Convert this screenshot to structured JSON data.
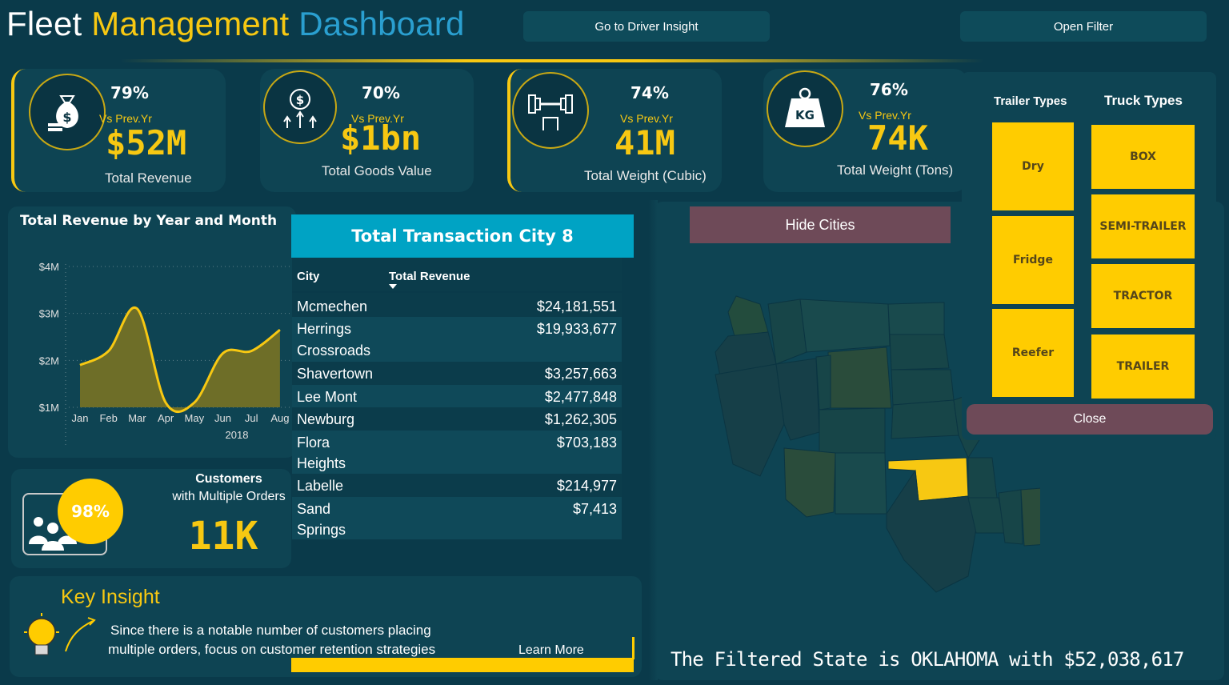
{
  "header": {
    "title_part1": "Fleet",
    "title_part2": "Management",
    "title_part3": "Dashboard",
    "driver_insight_button": "Go to Driver Insight",
    "open_filter_button": "Open Filter"
  },
  "kpis": [
    {
      "pct": "79%",
      "vs": "Vs Prev.Yr",
      "value": "$52M",
      "label": "Total Revenue",
      "icon": "money-bag-icon"
    },
    {
      "pct": "70%",
      "vs": "Vs Prev.Yr",
      "value": "$1bn",
      "label": "Total Goods Value",
      "icon": "dollar-growth-icon"
    },
    {
      "pct": "74%",
      "vs": "Vs Prev.Yr",
      "value": "41M",
      "label": "Total Weight (Cubic)",
      "icon": "dumbbell-icon"
    },
    {
      "pct": "76%",
      "vs": "Vs Prev.Yr",
      "value": "74K",
      "label": "Total Weight (Tons)",
      "icon": "kg-weight-icon"
    }
  ],
  "revenue_chart": {
    "title": "Total Revenue by Year and Month",
    "year_label": "2018"
  },
  "chart_data": {
    "type": "area",
    "title": "Total Revenue by Year and Month",
    "x": [
      "Jan",
      "Feb",
      "Mar",
      "Apr",
      "May",
      "Jun",
      "Jul",
      "Aug"
    ],
    "values": [
      1.9,
      2.2,
      3.1,
      1.1,
      1.1,
      2.15,
      2.2,
      2.65
    ],
    "yticks": [
      "$1M",
      "$2M",
      "$3M",
      "$4M"
    ],
    "ylim": [
      1,
      4
    ],
    "xgroup": "2018",
    "color": "#f7c812",
    "fill": "#6e6e28"
  },
  "city_table": {
    "title": "Total Transaction City 8",
    "col_city": "City",
    "col_revenue": "Total Revenue",
    "rows": [
      {
        "city1": "Mcmechen",
        "city2": "",
        "revenue": "$24,181,551"
      },
      {
        "city1": "Herrings",
        "city2": "Crossroads",
        "revenue": "$19,933,677"
      },
      {
        "city1": "Shavertown",
        "city2": "",
        "revenue": "$3,257,663"
      },
      {
        "city1": "Lee Mont",
        "city2": "",
        "revenue": "$2,477,848"
      },
      {
        "city1": "Newburg",
        "city2": "",
        "revenue": "$1,262,305"
      },
      {
        "city1": "Flora",
        "city2": "Heights",
        "revenue": "$703,183"
      },
      {
        "city1": "Labelle",
        "city2": "",
        "revenue": "$214,977"
      },
      {
        "city1": "Sand",
        "city2": "Springs",
        "revenue": "$7,413"
      }
    ]
  },
  "customers": {
    "pct": "98%",
    "title": "Customers",
    "subtitle": "with Multiple Orders",
    "value": "11K"
  },
  "insight": {
    "title": "Key Insight",
    "line1": "Since there is a notable number of customers placing",
    "line2": "multiple orders, focus on customer retention strategies",
    "learn_more": "Learn More"
  },
  "map": {
    "hide_cities_button": "Hide Cities",
    "footer": "The Filtered State is OKLAHOMA with $52,038,617",
    "highlight_color": "#f7c812"
  },
  "filter_panel": {
    "trailer_title": "Trailer Types",
    "truck_title": "Truck Types",
    "trailer_types": [
      "Dry",
      "Fridge",
      "Reefer"
    ],
    "truck_types": [
      "BOX",
      "SEMI-TRAILER",
      "TRACTOR",
      "TRAILER"
    ],
    "close_button": "Close"
  }
}
